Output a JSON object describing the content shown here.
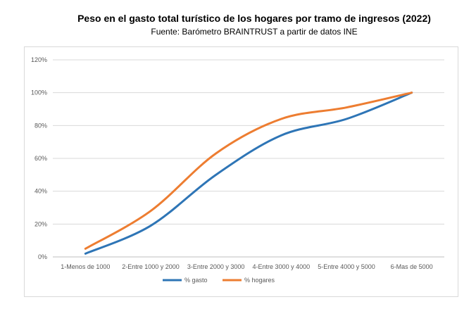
{
  "chart_data": {
    "type": "line",
    "title": "Peso en el gasto total turístico de los hogares por tramo de ingresos (2022)",
    "subtitle": "Fuente: Barómetro BRAINTRUST a partir de datos INE",
    "categories": [
      "1-Menos de 1000",
      "2-Entre 1000 y 2000",
      "3-Entre 2000 y 3000",
      "4-Entre 3000 y 4000",
      "5-Entre 4000 y 5000",
      "6-Mas de 5000"
    ],
    "series": [
      {
        "name": "% gasto",
        "color": "#2e75b6",
        "values": [
          2,
          19,
          50,
          74,
          84,
          100
        ]
      },
      {
        "name": "% hogares",
        "color": "#ed7d31",
        "values": [
          5,
          28,
          63,
          84,
          91,
          100
        ]
      }
    ],
    "y_ticks": [
      "0%",
      "20%",
      "40%",
      "60%",
      "80%",
      "100%",
      "120%"
    ],
    "ylim": [
      0,
      120
    ],
    "grid": true,
    "legend": "bottom",
    "smooth": true
  }
}
